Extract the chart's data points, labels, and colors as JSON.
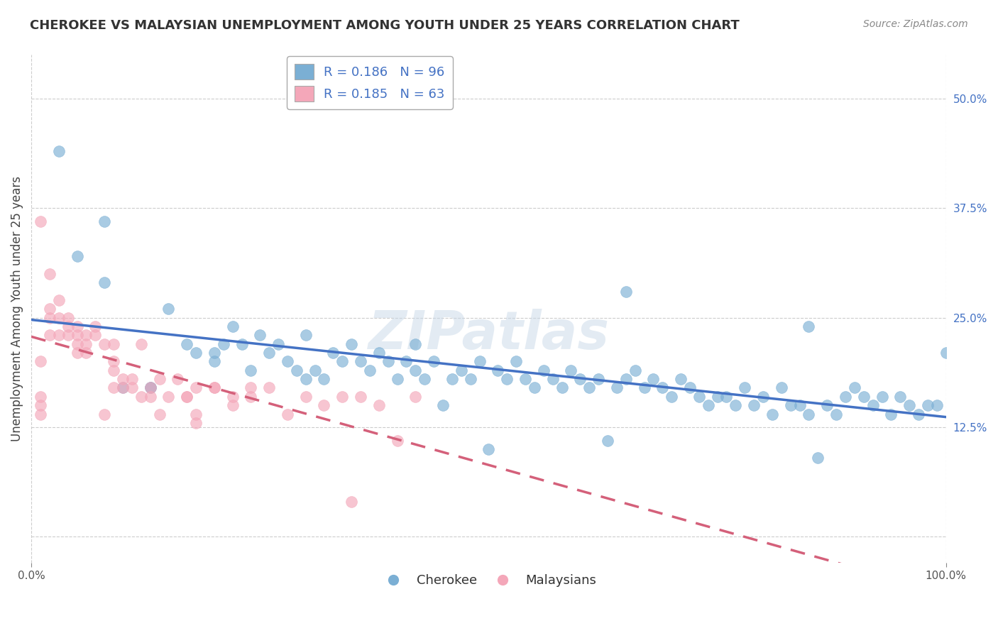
{
  "title": "CHEROKEE VS MALAYSIAN UNEMPLOYMENT AMONG YOUTH UNDER 25 YEARS CORRELATION CHART",
  "source": "Source: ZipAtlas.com",
  "ylabel": "Unemployment Among Youth under 25 years",
  "xlim": [
    0,
    100
  ],
  "ylim": [
    -3,
    55
  ],
  "yticks": [
    0,
    12.5,
    25,
    37.5,
    50
  ],
  "ytick_labels": [
    "",
    "12.5%",
    "25.0%",
    "37.5%",
    "50.0%"
  ],
  "xticks": [
    0,
    100
  ],
  "xtick_labels": [
    "0.0%",
    "100.0%"
  ],
  "cherokee_color": "#7bafd4",
  "cherokee_color_line": "#4472c4",
  "malaysian_color": "#f4a7b9",
  "malaysian_color_line": "#d4607a",
  "background_color": "#ffffff",
  "grid_color": "#cccccc",
  "cherokee_R": "0.186",
  "cherokee_N": "96",
  "malaysian_R": "0.185",
  "malaysian_N": "63",
  "watermark": "ZIPatlas",
  "cherokee_x": [
    3,
    5,
    8,
    8,
    10,
    13,
    15,
    17,
    18,
    20,
    21,
    22,
    23,
    24,
    25,
    26,
    27,
    28,
    29,
    30,
    31,
    32,
    33,
    34,
    35,
    36,
    37,
    38,
    39,
    40,
    41,
    42,
    43,
    44,
    45,
    46,
    47,
    48,
    49,
    50,
    51,
    52,
    53,
    54,
    55,
    56,
    57,
    58,
    59,
    60,
    61,
    62,
    63,
    64,
    65,
    66,
    67,
    68,
    69,
    70,
    71,
    72,
    73,
    74,
    75,
    76,
    77,
    78,
    79,
    80,
    81,
    82,
    83,
    84,
    85,
    86,
    87,
    88,
    89,
    90,
    91,
    92,
    93,
    94,
    95,
    96,
    97,
    98,
    99,
    100,
    13,
    20,
    30,
    42,
    65,
    85
  ],
  "cherokee_y": [
    44,
    32,
    36,
    29,
    17,
    17,
    26,
    22,
    21,
    20,
    22,
    24,
    22,
    19,
    23,
    21,
    22,
    20,
    19,
    18,
    19,
    18,
    21,
    20,
    22,
    20,
    19,
    21,
    20,
    18,
    20,
    19,
    18,
    20,
    15,
    18,
    19,
    18,
    20,
    10,
    19,
    18,
    20,
    18,
    17,
    19,
    18,
    17,
    19,
    18,
    17,
    18,
    11,
    17,
    18,
    19,
    17,
    18,
    17,
    16,
    18,
    17,
    16,
    15,
    16,
    16,
    15,
    17,
    15,
    16,
    14,
    17,
    15,
    15,
    24,
    9,
    15,
    14,
    16,
    17,
    16,
    15,
    16,
    14,
    16,
    15,
    14,
    15,
    15,
    21,
    17,
    21,
    23,
    22,
    28,
    14
  ],
  "malaysian_x": [
    1,
    1,
    1,
    1,
    1,
    2,
    2,
    2,
    2,
    3,
    3,
    4,
    4,
    4,
    5,
    5,
    5,
    5,
    6,
    6,
    6,
    7,
    7,
    8,
    8,
    9,
    9,
    9,
    9,
    10,
    10,
    11,
    11,
    12,
    12,
    13,
    13,
    14,
    14,
    15,
    16,
    17,
    17,
    18,
    18,
    18,
    20,
    20,
    22,
    22,
    24,
    24,
    26,
    28,
    30,
    32,
    34,
    35,
    36,
    38,
    40,
    42,
    3
  ],
  "malaysian_y": [
    15,
    14,
    16,
    20,
    36,
    25,
    26,
    30,
    23,
    23,
    25,
    23,
    25,
    24,
    24,
    23,
    22,
    21,
    22,
    23,
    21,
    23,
    24,
    14,
    22,
    22,
    20,
    19,
    17,
    18,
    17,
    17,
    18,
    16,
    22,
    17,
    16,
    18,
    14,
    16,
    18,
    16,
    16,
    17,
    14,
    13,
    17,
    17,
    15,
    16,
    17,
    16,
    17,
    14,
    16,
    15,
    16,
    4,
    16,
    15,
    11,
    16,
    27
  ]
}
